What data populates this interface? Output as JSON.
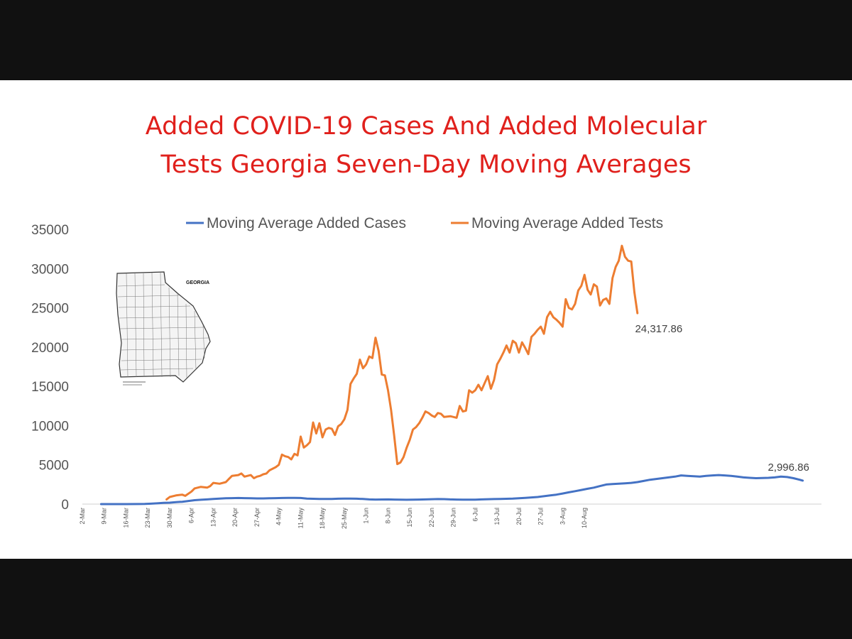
{
  "chart_data": {
    "type": "line",
    "title_lines": [
      "Added COVID-19 Cases And Added Molecular",
      "Tests Georgia Seven-Day Moving Averages"
    ],
    "xlabel": "",
    "ylabel": "",
    "ylim": [
      0,
      35000
    ],
    "yticks": [
      "0",
      "5000",
      "10000",
      "15000",
      "20000",
      "25000",
      "30000",
      "35000"
    ],
    "xticks": [
      "2-Mar",
      "9-Mar",
      "16-Mar",
      "23-Mar",
      "30-Mar",
      "6-Apr",
      "13-Apr",
      "20-Apr",
      "27-Apr",
      "4-May",
      "11-May",
      "18-May",
      "25-May",
      "1-Jun",
      "8-Jun",
      "15-Jun",
      "22-Jun",
      "29-Jun",
      "6-Jul",
      "13-Jul",
      "20-Jul",
      "27-Jul",
      "3-Aug",
      "10-Aug"
    ],
    "grid": false,
    "legend_position": "top",
    "colors": {
      "cases": "#4472c4",
      "tests": "#ed7d31"
    },
    "series": [
      {
        "name": "Moving Average Added Cases",
        "color": "#4472c4",
        "points": [
          [
            6,
            0
          ],
          [
            10,
            0
          ],
          [
            14,
            0
          ],
          [
            18,
            5
          ],
          [
            20,
            20
          ],
          [
            22,
            50
          ],
          [
            24,
            100
          ],
          [
            26,
            150
          ],
          [
            28,
            180
          ],
          [
            30,
            250
          ],
          [
            32,
            300
          ],
          [
            34,
            400
          ],
          [
            36,
            500
          ],
          [
            38,
            550
          ],
          [
            40,
            600
          ],
          [
            42,
            650
          ],
          [
            44,
            700
          ],
          [
            46,
            750
          ],
          [
            48,
            760
          ],
          [
            50,
            780
          ],
          [
            52,
            760
          ],
          [
            54,
            740
          ],
          [
            56,
            720
          ],
          [
            58,
            720
          ],
          [
            60,
            740
          ],
          [
            62,
            760
          ],
          [
            64,
            780
          ],
          [
            66,
            790
          ],
          [
            68,
            800
          ],
          [
            70,
            780
          ],
          [
            72,
            700
          ],
          [
            74,
            680
          ],
          [
            76,
            660
          ],
          [
            78,
            650
          ],
          [
            80,
            660
          ],
          [
            82,
            690
          ],
          [
            84,
            700
          ],
          [
            86,
            700
          ],
          [
            88,
            690
          ],
          [
            90,
            650
          ],
          [
            92,
            600
          ],
          [
            94,
            580
          ],
          [
            96,
            590
          ],
          [
            98,
            600
          ],
          [
            100,
            580
          ],
          [
            102,
            560
          ],
          [
            104,
            550
          ],
          [
            106,
            560
          ],
          [
            108,
            580
          ],
          [
            110,
            600
          ],
          [
            112,
            620
          ],
          [
            114,
            640
          ],
          [
            116,
            630
          ],
          [
            118,
            600
          ],
          [
            120,
            580
          ],
          [
            122,
            560
          ],
          [
            124,
            560
          ],
          [
            126,
            570
          ],
          [
            128,
            600
          ],
          [
            130,
            620
          ],
          [
            132,
            640
          ],
          [
            134,
            660
          ],
          [
            136,
            680
          ],
          [
            138,
            700
          ],
          [
            140,
            750
          ],
          [
            142,
            800
          ],
          [
            144,
            850
          ],
          [
            146,
            900
          ],
          [
            148,
            1000
          ],
          [
            150,
            1100
          ],
          [
            152,
            1200
          ],
          [
            154,
            1350
          ],
          [
            156,
            1500
          ],
          [
            158,
            1650
          ],
          [
            160,
            1800
          ],
          [
            162,
            1950
          ],
          [
            164,
            2100
          ],
          [
            166,
            2300
          ],
          [
            168,
            2500
          ],
          [
            170,
            2550
          ],
          [
            172,
            2600
          ],
          [
            174,
            2650
          ],
          [
            176,
            2700
          ],
          [
            178,
            2800
          ],
          [
            180,
            2950
          ],
          [
            182,
            3100
          ],
          [
            184,
            3200
          ],
          [
            186,
            3300
          ],
          [
            188,
            3400
          ],
          [
            190,
            3500
          ],
          [
            192,
            3650
          ],
          [
            194,
            3600
          ],
          [
            196,
            3550
          ],
          [
            198,
            3500
          ],
          [
            200,
            3600
          ],
          [
            202,
            3650
          ],
          [
            204,
            3700
          ],
          [
            206,
            3650
          ],
          [
            208,
            3600
          ],
          [
            210,
            3500
          ],
          [
            212,
            3400
          ],
          [
            214,
            3350
          ],
          [
            216,
            3300
          ],
          [
            218,
            3320
          ],
          [
            220,
            3350
          ],
          [
            222,
            3400
          ],
          [
            224,
            3500
          ],
          [
            226,
            3450
          ],
          [
            228,
            3300
          ],
          [
            230,
            3100
          ],
          [
            231,
            2996.86
          ]
        ]
      },
      {
        "name": "Moving Average Added Tests",
        "color": "#ed7d31",
        "points": [
          [
            27,
            600
          ],
          [
            28,
            900
          ],
          [
            30,
            1100
          ],
          [
            32,
            1200
          ],
          [
            33,
            1050
          ],
          [
            35,
            1600
          ],
          [
            36,
            2000
          ],
          [
            38,
            2200
          ],
          [
            40,
            2100
          ],
          [
            41,
            2300
          ],
          [
            42,
            2700
          ],
          [
            44,
            2600
          ],
          [
            46,
            2800
          ],
          [
            47,
            3200
          ],
          [
            48,
            3600
          ],
          [
            50,
            3700
          ],
          [
            51,
            3900
          ],
          [
            52,
            3500
          ],
          [
            54,
            3700
          ],
          [
            55,
            3300
          ],
          [
            56,
            3500
          ],
          [
            57,
            3600
          ],
          [
            58,
            3800
          ],
          [
            59,
            3900
          ],
          [
            60,
            4300
          ],
          [
            62,
            4700
          ],
          [
            63,
            5000
          ],
          [
            64,
            6300
          ],
          [
            65,
            6100
          ],
          [
            66,
            6000
          ],
          [
            67,
            5700
          ],
          [
            68,
            6400
          ],
          [
            69,
            6200
          ],
          [
            70,
            8600
          ],
          [
            71,
            7200
          ],
          [
            72,
            7500
          ],
          [
            73,
            7900
          ],
          [
            74,
            10400
          ],
          [
            75,
            9000
          ],
          [
            76,
            10300
          ],
          [
            77,
            8500
          ],
          [
            78,
            9500
          ],
          [
            79,
            9700
          ],
          [
            80,
            9600
          ],
          [
            81,
            8800
          ],
          [
            82,
            9900
          ],
          [
            83,
            10200
          ],
          [
            84,
            10800
          ],
          [
            85,
            12000
          ],
          [
            86,
            15300
          ],
          [
            87,
            16000
          ],
          [
            88,
            16600
          ],
          [
            89,
            18400
          ],
          [
            90,
            17300
          ],
          [
            91,
            17800
          ],
          [
            92,
            18800
          ],
          [
            93,
            18600
          ],
          [
            94,
            21200
          ],
          [
            95,
            19500
          ],
          [
            96,
            16500
          ],
          [
            97,
            16400
          ],
          [
            98,
            14500
          ],
          [
            99,
            12000
          ],
          [
            100,
            8700
          ],
          [
            101,
            5100
          ],
          [
            102,
            5300
          ],
          [
            103,
            6000
          ],
          [
            104,
            7200
          ],
          [
            105,
            8200
          ],
          [
            106,
            9500
          ],
          [
            107,
            9800
          ],
          [
            108,
            10300
          ],
          [
            109,
            11000
          ],
          [
            110,
            11800
          ],
          [
            111,
            11600
          ],
          [
            112,
            11300
          ],
          [
            113,
            11100
          ],
          [
            114,
            11600
          ],
          [
            115,
            11500
          ],
          [
            116,
            11100
          ],
          [
            118,
            11200
          ],
          [
            120,
            11000
          ],
          [
            121,
            12500
          ],
          [
            122,
            11800
          ],
          [
            123,
            11900
          ],
          [
            124,
            14500
          ],
          [
            125,
            14200
          ],
          [
            126,
            14500
          ],
          [
            127,
            15200
          ],
          [
            128,
            14500
          ],
          [
            129,
            15400
          ],
          [
            130,
            16300
          ],
          [
            131,
            14700
          ],
          [
            132,
            15800
          ],
          [
            133,
            17800
          ],
          [
            134,
            18500
          ],
          [
            135,
            19300
          ],
          [
            136,
            20200
          ],
          [
            137,
            19300
          ],
          [
            138,
            20800
          ],
          [
            139,
            20500
          ],
          [
            140,
            19300
          ],
          [
            141,
            20600
          ],
          [
            142,
            19900
          ],
          [
            143,
            19100
          ],
          [
            144,
            21300
          ],
          [
            145,
            21700
          ],
          [
            146,
            22200
          ],
          [
            147,
            22600
          ],
          [
            148,
            21700
          ],
          [
            149,
            23800
          ],
          [
            150,
            24500
          ],
          [
            151,
            23800
          ],
          [
            152,
            23500
          ],
          [
            153,
            23100
          ],
          [
            154,
            22600
          ],
          [
            155,
            26100
          ],
          [
            156,
            25000
          ],
          [
            157,
            24800
          ],
          [
            158,
            25500
          ],
          [
            159,
            27200
          ],
          [
            160,
            27800
          ],
          [
            161,
            29200
          ],
          [
            162,
            27300
          ],
          [
            163,
            26700
          ],
          [
            164,
            28000
          ],
          [
            165,
            27700
          ],
          [
            166,
            25300
          ],
          [
            167,
            26000
          ],
          [
            168,
            26200
          ],
          [
            169,
            25500
          ],
          [
            170,
            28800
          ],
          [
            171,
            30200
          ],
          [
            172,
            31000
          ],
          [
            173,
            32900
          ],
          [
            174,
            31500
          ],
          [
            175,
            31000
          ],
          [
            176,
            30900
          ],
          [
            177,
            27000
          ],
          [
            178,
            24317.86
          ]
        ]
      }
    ],
    "annotations": [
      "24,317.86",
      "2,996.86"
    ]
  }
}
